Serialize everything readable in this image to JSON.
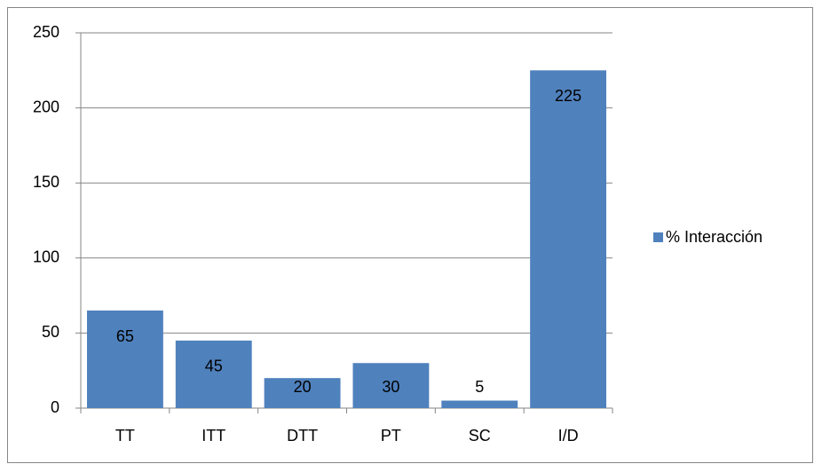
{
  "chart_data": {
    "type": "bar",
    "categories": [
      "TT",
      "ITT",
      "DTT",
      "PT",
      "SC",
      "I/D"
    ],
    "series": [
      {
        "name": "% Interacción",
        "color": "#4f81bd",
        "values": [
          65,
          45,
          20,
          30,
          5,
          225
        ]
      }
    ],
    "ylim": [
      0,
      250
    ],
    "yticks": [
      0,
      50,
      100,
      150,
      200,
      250
    ],
    "grid": true,
    "legend": "right"
  }
}
